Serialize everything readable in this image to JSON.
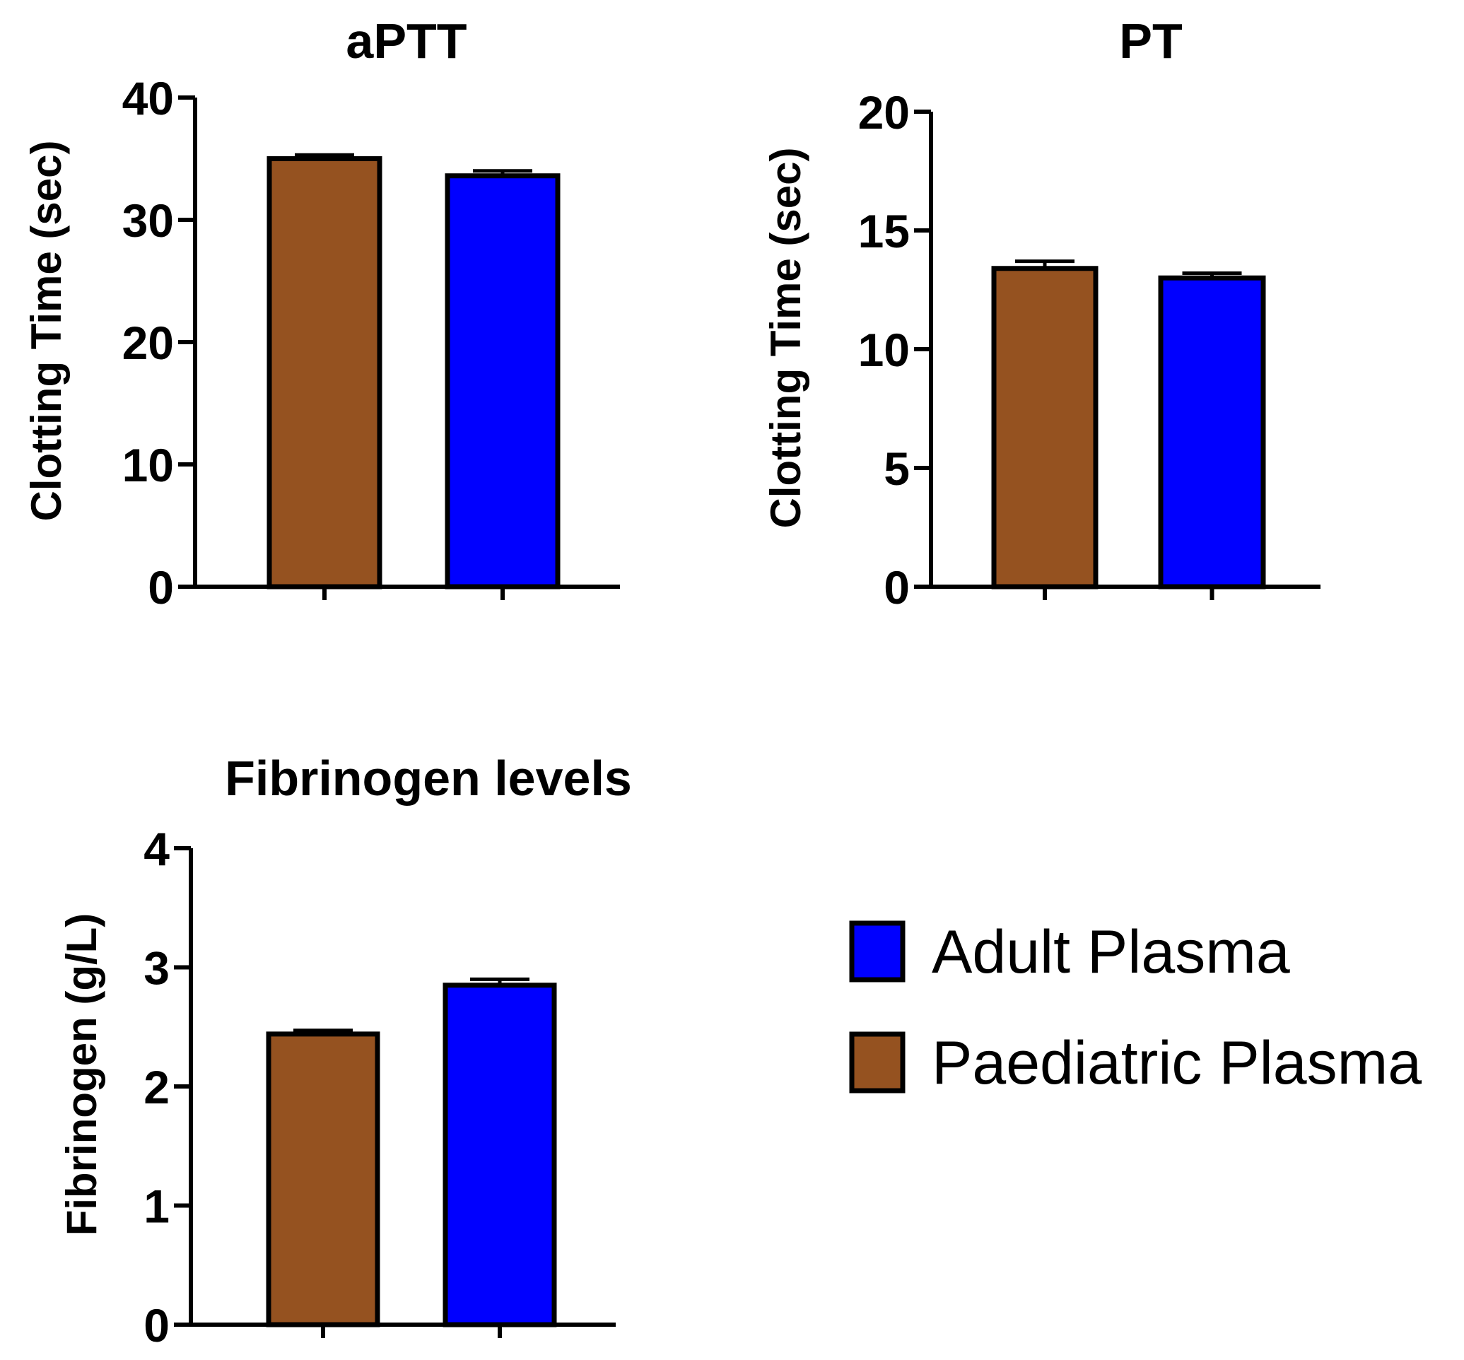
{
  "chart_data": [
    {
      "type": "bar",
      "title": "aPTT",
      "ylabel": "Clotting Time (sec)",
      "xlabel": "",
      "ylim": [
        0,
        40
      ],
      "yticks": [
        0,
        10,
        20,
        30,
        40
      ],
      "categories": [
        "Paediatric Plasma",
        "Adult Plasma"
      ],
      "values": [
        35.0,
        33.6
      ],
      "errors": [
        0.3,
        0.4
      ]
    },
    {
      "type": "bar",
      "title": "PT",
      "ylabel": "Clotting Time (sec)",
      "xlabel": "",
      "ylim": [
        0,
        20
      ],
      "yticks": [
        0,
        5,
        10,
        15,
        20
      ],
      "categories": [
        "Paediatric Plasma",
        "Adult Plasma"
      ],
      "values": [
        13.4,
        13.0
      ],
      "errors": [
        0.3,
        0.2
      ]
    },
    {
      "type": "bar",
      "title": "Fibrinogen levels",
      "ylabel": "Fibrinogen (g/L)",
      "xlabel": "",
      "ylim": [
        0,
        4
      ],
      "yticks": [
        0,
        1,
        2,
        3,
        4
      ],
      "categories": [
        "Paediatric Plasma",
        "Adult Plasma"
      ],
      "values": [
        2.44,
        2.85
      ],
      "errors": [
        0.03,
        0.05
      ]
    }
  ],
  "legend": {
    "items": [
      {
        "label": "Adult Plasma",
        "color": "#0000ff"
      },
      {
        "label": "Paediatric Plasma",
        "color": "#955220"
      }
    ]
  },
  "colors": {
    "Paediatric Plasma": "#955220",
    "Adult Plasma": "#0000ff",
    "axis": "#000000"
  }
}
